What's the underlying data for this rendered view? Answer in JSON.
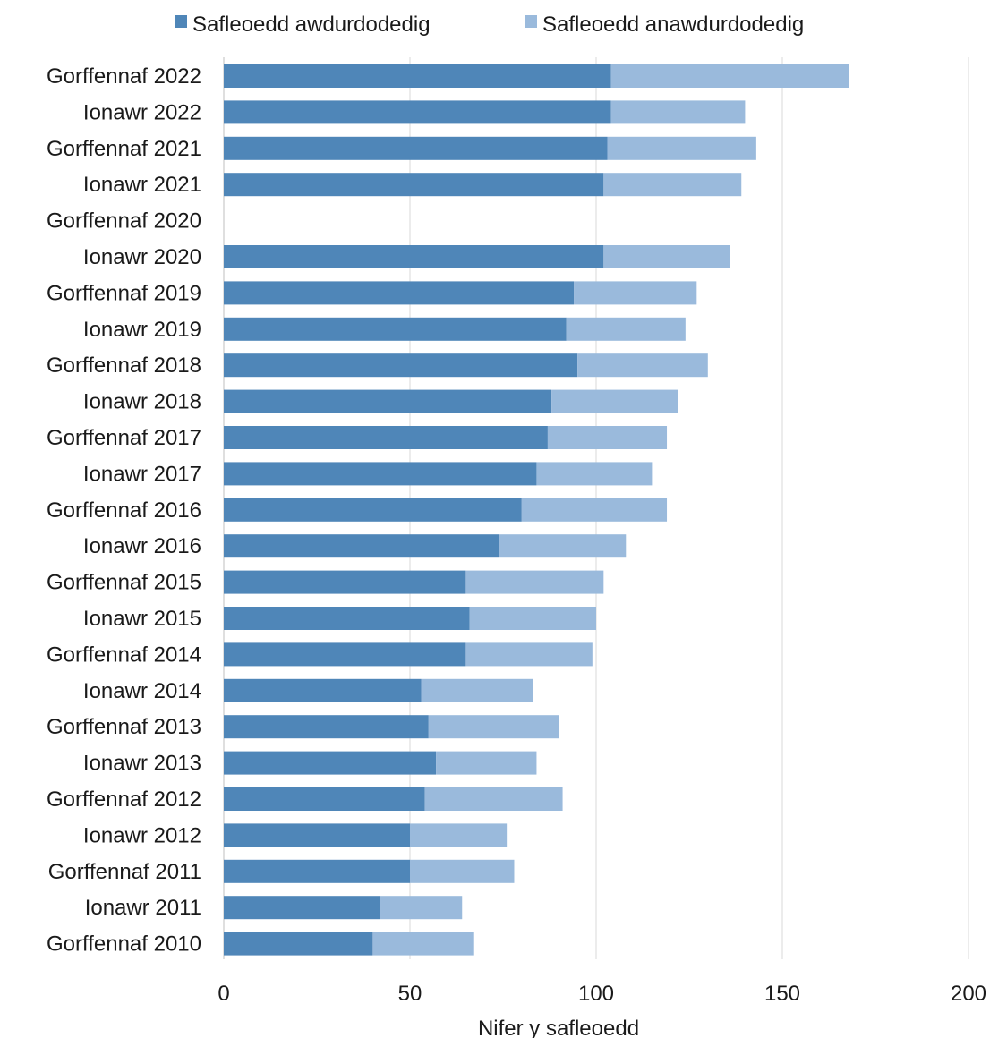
{
  "chart_data": {
    "type": "bar",
    "orientation": "horizontal",
    "stacked": true,
    "categories": [
      "Gorffennaf 2022",
      "Ionawr 2022",
      "Gorffennaf 2021",
      "Ionawr 2021",
      "Gorffennaf 2020",
      "Ionawr 2020",
      "Gorffennaf 2019",
      "Ionawr 2019",
      "Gorffennaf 2018",
      "Ionawr 2018",
      "Gorffennaf 2017",
      "Ionawr 2017",
      "Gorffennaf 2016",
      "Ionawr 2016",
      "Gorffennaf 2015",
      "Ionawr 2015",
      "Gorffennaf 2014",
      "Ionawr 2014",
      "Gorffennaf 2013",
      "Ionawr 2013",
      "Gorffennaf 2012",
      "Ionawr 2012",
      "Gorffennaf 2011",
      "Ionawr 2011",
      "Gorffennaf 2010"
    ],
    "series": [
      {
        "name": "Safleoedd awdurdodedig",
        "color": "#4f86b8",
        "values": [
          104,
          104,
          103,
          102,
          null,
          102,
          94,
          92,
          95,
          88,
          87,
          84,
          80,
          74,
          65,
          66,
          65,
          53,
          55,
          57,
          54,
          50,
          50,
          42,
          40
        ]
      },
      {
        "name": "Safleoedd anawdurdodedig",
        "color": "#9abadc",
        "values": [
          64,
          36,
          40,
          37,
          null,
          34,
          33,
          32,
          35,
          34,
          32,
          31,
          39,
          34,
          37,
          34,
          34,
          30,
          35,
          27,
          37,
          26,
          28,
          22,
          27
        ]
      }
    ],
    "xlabel": "Nifer y safleoedd",
    "xlim": [
      0,
      200
    ],
    "xticks": [
      0,
      50,
      100,
      150,
      200
    ],
    "grid": "vertical",
    "legend_position": "top"
  }
}
